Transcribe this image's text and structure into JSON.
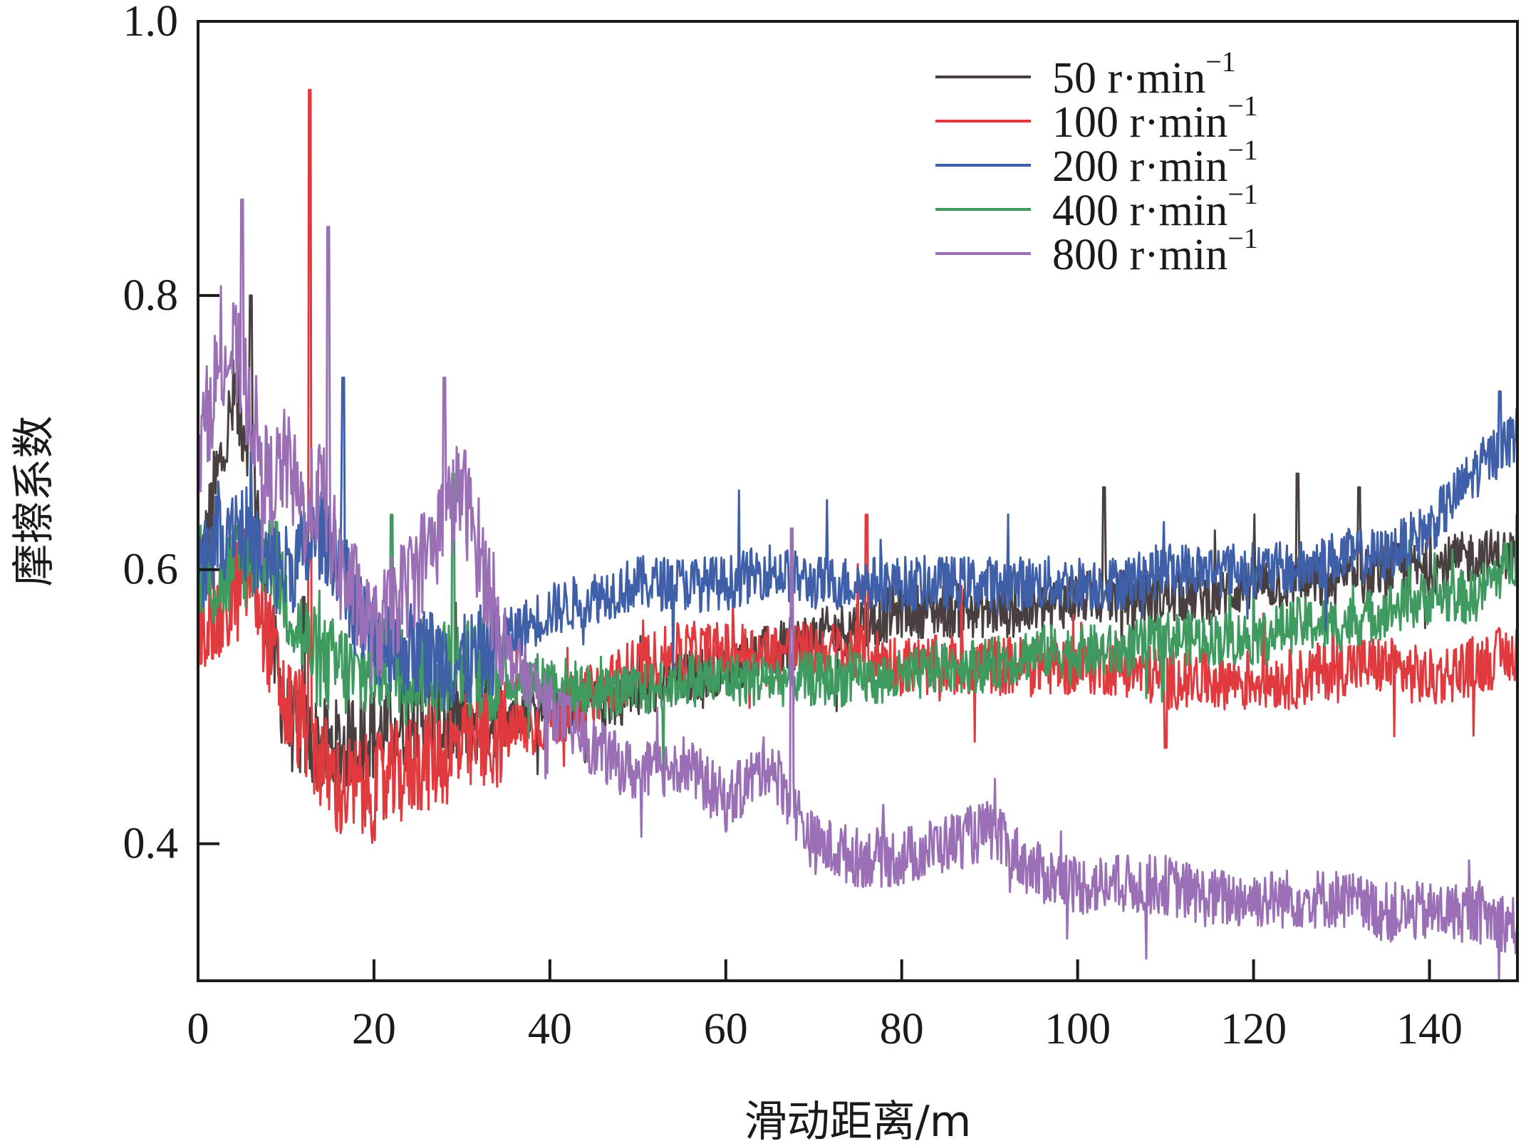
{
  "chart_data": {
    "type": "line",
    "xlabel": "滑动距离/m",
    "ylabel": "摩擦系数",
    "xlim": [
      0,
      150
    ],
    "ylim": [
      0.3,
      1.0
    ],
    "x_ticks": [
      0,
      20,
      40,
      60,
      80,
      100,
      120,
      140
    ],
    "x_tick_labels": [
      "0",
      "20",
      "40",
      "60",
      "80",
      "100",
      "120",
      "140"
    ],
    "y_ticks": [
      0.4,
      0.6,
      0.8,
      1.0
    ],
    "y_tick_labels": [
      "0.4",
      "0.6",
      "0.8",
      "1.0"
    ],
    "grid": false,
    "legend_position": "top-right",
    "x": [
      0,
      2,
      4,
      6,
      8,
      10,
      12,
      14,
      16,
      18,
      20,
      25,
      30,
      35,
      40,
      45,
      50,
      55,
      60,
      65,
      70,
      75,
      80,
      85,
      90,
      95,
      100,
      105,
      110,
      115,
      120,
      125,
      130,
      135,
      140,
      145,
      150
    ],
    "series": [
      {
        "name": "50 r·min",
        "unit_sup": "−1",
        "color": "#4a3f3f",
        "values": [
          0.58,
          0.66,
          0.72,
          0.7,
          0.56,
          0.49,
          0.48,
          0.47,
          0.47,
          0.48,
          0.48,
          0.49,
          0.49,
          0.5,
          0.5,
          0.5,
          0.51,
          0.52,
          0.53,
          0.54,
          0.55,
          0.56,
          0.57,
          0.57,
          0.57,
          0.57,
          0.58,
          0.58,
          0.58,
          0.58,
          0.59,
          0.59,
          0.59,
          0.6,
          0.6,
          0.61,
          0.61
        ],
        "spikes": [
          [
            6,
            0.8
          ],
          [
            12,
            0.58
          ],
          [
            103,
            0.66
          ],
          [
            125,
            0.67
          ],
          [
            132,
            0.66
          ]
        ]
      },
      {
        "name": "100 r·min",
        "unit_sup": "−1",
        "color": "#e03a3e",
        "values": [
          0.57,
          0.56,
          0.58,
          0.6,
          0.55,
          0.5,
          0.49,
          0.46,
          0.44,
          0.44,
          0.44,
          0.46,
          0.47,
          0.48,
          0.49,
          0.51,
          0.53,
          0.54,
          0.54,
          0.54,
          0.54,
          0.54,
          0.53,
          0.53,
          0.53,
          0.53,
          0.53,
          0.53,
          0.52,
          0.52,
          0.52,
          0.52,
          0.53,
          0.53,
          0.52,
          0.53,
          0.54
        ],
        "spikes": [
          [
            12.7,
            0.95
          ],
          [
            76,
            0.64
          ],
          [
            110,
            0.47
          ]
        ]
      },
      {
        "name": "200 r·min",
        "unit_sup": "−1",
        "color": "#3f5fa8",
        "values": [
          0.6,
          0.63,
          0.64,
          0.62,
          0.6,
          0.6,
          0.61,
          0.63,
          0.61,
          0.57,
          0.55,
          0.54,
          0.53,
          0.55,
          0.57,
          0.58,
          0.59,
          0.59,
          0.59,
          0.6,
          0.59,
          0.59,
          0.59,
          0.59,
          0.59,
          0.59,
          0.59,
          0.59,
          0.6,
          0.6,
          0.6,
          0.6,
          0.61,
          0.61,
          0.63,
          0.67,
          0.7
        ],
        "spikes": [
          [
            16.5,
            0.74
          ],
          [
            148,
            0.73
          ]
        ]
      },
      {
        "name": "400 r·min",
        "unit_sup": "−1",
        "color": "#3e9a5e",
        "values": [
          0.59,
          0.59,
          0.6,
          0.61,
          0.62,
          0.58,
          0.55,
          0.53,
          0.53,
          0.52,
          0.53,
          0.53,
          0.53,
          0.52,
          0.52,
          0.51,
          0.51,
          0.52,
          0.52,
          0.52,
          0.52,
          0.52,
          0.52,
          0.53,
          0.53,
          0.54,
          0.54,
          0.54,
          0.55,
          0.55,
          0.55,
          0.56,
          0.56,
          0.57,
          0.58,
          0.58,
          0.61
        ],
        "spikes": [
          [
            29,
            0.67
          ],
          [
            22,
            0.64
          ],
          [
            150,
            0.64
          ]
        ]
      },
      {
        "name": "800 r·min",
        "unit_sup": "−1",
        "color": "#9a6fb5",
        "values": [
          0.68,
          0.74,
          0.76,
          0.72,
          0.66,
          0.68,
          0.64,
          0.66,
          0.6,
          0.58,
          0.55,
          0.6,
          0.66,
          0.54,
          0.5,
          0.47,
          0.45,
          0.46,
          0.43,
          0.46,
          0.4,
          0.39,
          0.39,
          0.4,
          0.41,
          0.38,
          0.37,
          0.37,
          0.37,
          0.36,
          0.36,
          0.36,
          0.36,
          0.35,
          0.35,
          0.35,
          0.34
        ],
        "spikes": [
          [
            5,
            0.87
          ],
          [
            14.8,
            0.85
          ],
          [
            28,
            0.74
          ],
          [
            67.5,
            0.63
          ]
        ]
      }
    ]
  }
}
